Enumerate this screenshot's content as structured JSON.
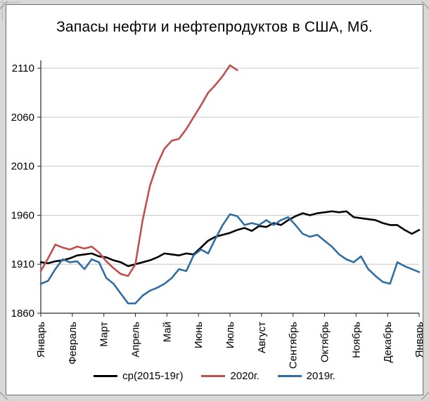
{
  "chart_data": {
    "type": "line",
    "title": "Запасы нефти и нефтепродуктов в США, Мб.",
    "x_categories": [
      "Январь",
      "Февраль",
      "Март",
      "Апрель",
      "Май",
      "Июнь",
      "Июль",
      "Август",
      "Сентябрь",
      "Октябрь",
      "Ноябрь",
      "Декабрь",
      "Январь"
    ],
    "x_unit": "weeks",
    "x_index_max": 52,
    "ylim": [
      1860,
      2118
    ],
    "yticks": [
      1860,
      1910,
      1960,
      2010,
      2060,
      2110
    ],
    "grid": true,
    "legend_position": "bottom",
    "colors": {
      "grid": "#c6c6c6",
      "axis": "#262626",
      "text": "#000000"
    },
    "series": [
      {
        "name": "ср(2015-19г)",
        "color": "#000000",
        "values": [
          1912,
          1911,
          1913,
          1914,
          1916,
          1919,
          1920,
          1921,
          1918,
          1917,
          1914,
          1912,
          1908,
          1910,
          1912,
          1914,
          1917,
          1921,
          1920,
          1919,
          1921,
          1920,
          1927,
          1934,
          1938,
          1940,
          1942,
          1945,
          1947,
          1944,
          1949,
          1948,
          1952,
          1950,
          1955,
          1959,
          1962,
          1960,
          1962,
          1963,
          1964,
          1963,
          1964,
          1958,
          1957,
          1956,
          1955,
          1952,
          1950,
          1950,
          1945,
          1941,
          1945
        ]
      },
      {
        "name": "2020г.",
        "color": "#c0504d",
        "values": [
          1903,
          1916,
          1930,
          1927,
          1925,
          1928,
          1926,
          1928,
          1922,
          1913,
          1906,
          1900,
          1898,
          1910,
          1955,
          1990,
          2012,
          2028,
          2036,
          2038,
          2048,
          2060,
          2072,
          2085,
          2093,
          2102,
          2113,
          2108
        ]
      },
      {
        "name": "2019г.",
        "color": "#2f6da4",
        "values": [
          1890,
          1893,
          1905,
          1915,
          1912,
          1913,
          1905,
          1915,
          1912,
          1896,
          1890,
          1880,
          1870,
          1870,
          1878,
          1883,
          1886,
          1890,
          1896,
          1905,
          1903,
          1919,
          1925,
          1921,
          1936,
          1950,
          1961,
          1959,
          1950,
          1952,
          1950,
          1955,
          1950,
          1955,
          1958,
          1950,
          1941,
          1938,
          1940,
          1934,
          1928,
          1920,
          1915,
          1912,
          1918,
          1905,
          1898,
          1892,
          1890,
          1912,
          1908,
          1905,
          1902
        ]
      }
    ]
  }
}
